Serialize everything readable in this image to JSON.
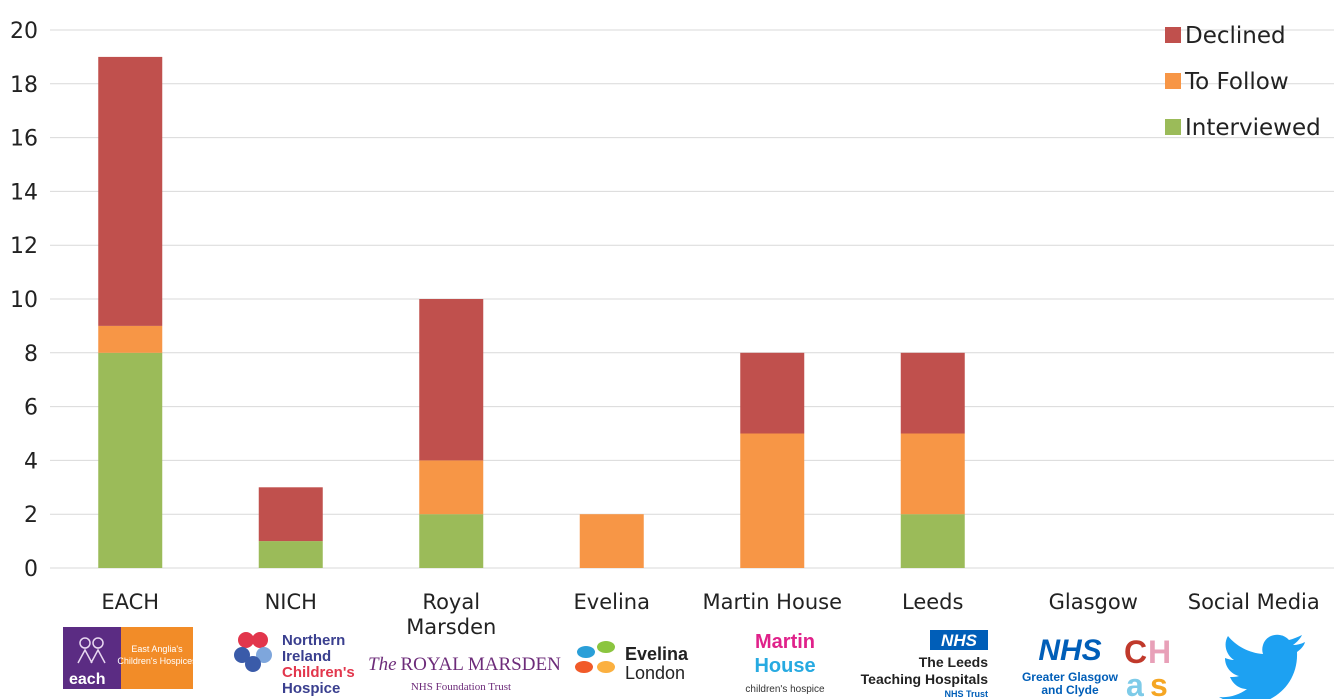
{
  "chart_data": {
    "type": "bar",
    "stacked": true,
    "title": "",
    "xlabel": "",
    "ylabel": "",
    "ylim": [
      0,
      20
    ],
    "yticks": [
      0,
      2,
      4,
      6,
      8,
      10,
      12,
      14,
      16,
      18,
      20
    ],
    "grid": true,
    "legend_position": "top-right",
    "categories": [
      [
        "EACH"
      ],
      [
        "NICH"
      ],
      [
        "Royal",
        "Marsden"
      ],
      [
        "Evelina"
      ],
      [
        "Martin House"
      ],
      [
        "Leeds"
      ],
      [
        "Glasgow"
      ],
      [
        "Social Media"
      ]
    ],
    "series": [
      {
        "name": "Interviewed",
        "color": "#9bbb59",
        "values": [
          8,
          1,
          2,
          0,
          0,
          2,
          0,
          0
        ]
      },
      {
        "name": "To Follow",
        "color": "#f79646",
        "values": [
          1,
          0,
          2,
          2,
          5,
          3,
          0,
          0
        ]
      },
      {
        "name": "Declined",
        "color": "#c0504d",
        "values": [
          10,
          2,
          6,
          0,
          3,
          3,
          0,
          0
        ]
      }
    ],
    "legend_order": [
      "Declined",
      "To Follow",
      "Interviewed"
    ]
  },
  "logos": {
    "each": {
      "name": "each",
      "text": [
        "East Anglia's",
        "Children's Hospices"
      ],
      "icon": "children-figures-icon"
    },
    "nich": {
      "lines": [
        "Northern",
        "Ireland",
        "Children's",
        "Hospice"
      ],
      "icon": "flower-icon"
    },
    "marsden": {
      "line1_prefix": "The",
      "line1_main": "ROYAL MARSDEN",
      "line2": "NHS Foundation Trust"
    },
    "evelina": {
      "lines": [
        "Evelina",
        "London"
      ],
      "icon": "petals-icon"
    },
    "martin": {
      "lines": [
        "Martin",
        "House"
      ],
      "line3": "children's hospice"
    },
    "leeds": {
      "badge": "NHS",
      "lines": [
        "The Leeds",
        "Teaching Hospitals"
      ],
      "line3": "NHS Trust"
    },
    "glasgow": {
      "badge": "NHS",
      "lines": [
        "Greater Glasgow",
        "and Clyde"
      ],
      "chas": [
        "C",
        "H",
        "a",
        "s"
      ]
    },
    "social": {
      "icon": "twitter-bird-icon"
    }
  }
}
